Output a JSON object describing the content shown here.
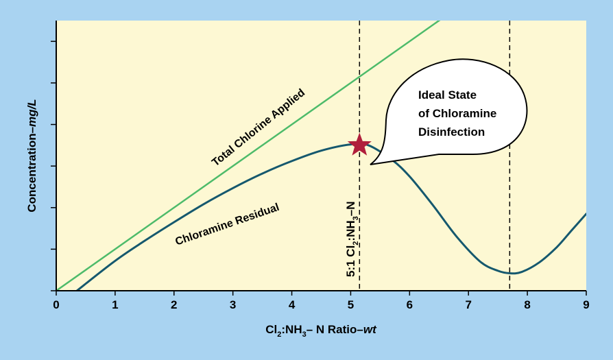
{
  "chart_data": {
    "type": "line",
    "xlabel": {
      "prefix": "Cl",
      "sub1": "2",
      "mid": ":NH",
      "sub2": "3",
      "suffix": "– N Ratio–",
      "italic": "wt"
    },
    "ylabel": {
      "text": "Concentration–",
      "italic": "mg/L"
    },
    "xlim": [
      0,
      9
    ],
    "ylim": [
      0,
      6.5
    ],
    "x_ticks": [
      0,
      1,
      2,
      3,
      4,
      5,
      6,
      7,
      8,
      9
    ],
    "x_tick_labels": [
      "0",
      "1",
      "2",
      "3",
      "4",
      "5",
      "6",
      "7",
      "8",
      "9"
    ],
    "y_ticks": [
      0,
      1,
      2,
      3,
      4,
      5,
      6
    ],
    "grid": false,
    "series": [
      {
        "name": "Total Chlorine Applied",
        "color": "#4dbb6a",
        "x": [
          0,
          7
        ],
        "y": [
          0,
          7
        ]
      },
      {
        "name": "Chloramine Residual",
        "color": "#15586e",
        "x": [
          0.35,
          1,
          1.5,
          2,
          2.5,
          3,
          3.5,
          4,
          4.5,
          5,
          5.3,
          5.7,
          6,
          6.4,
          6.8,
          7.2,
          7.5,
          7.7,
          7.9,
          8.2,
          8.5,
          8.75,
          9
        ],
        "y": [
          0,
          0.72,
          1.2,
          1.65,
          2.08,
          2.47,
          2.82,
          3.12,
          3.37,
          3.52,
          3.5,
          3.15,
          2.75,
          2.05,
          1.3,
          0.7,
          0.48,
          0.42,
          0.45,
          0.68,
          1.05,
          1.45,
          1.85
        ]
      }
    ],
    "vertical_lines": [
      {
        "x": 5.15,
        "label_prefix": "5:1 Cl",
        "label_sub1": "2",
        "label_mid": ":NH",
        "label_sub2": "3",
        "label_suffix": "–N"
      },
      {
        "x": 7.7
      }
    ],
    "marker": {
      "x": 5.15,
      "y": 3.5,
      "shape": "star",
      "color": "#b01f3c"
    },
    "callout": {
      "lines": [
        "Ideal State",
        "of Chloramine",
        "Disinfection"
      ],
      "points_to": "star"
    },
    "colors": {
      "plot_background": "#fdf8d3",
      "page_background": "#a9d3f1",
      "total_chlorine": "#4dbb6a",
      "chloramine_residual": "#15586e",
      "star": "#b01f3c"
    }
  }
}
